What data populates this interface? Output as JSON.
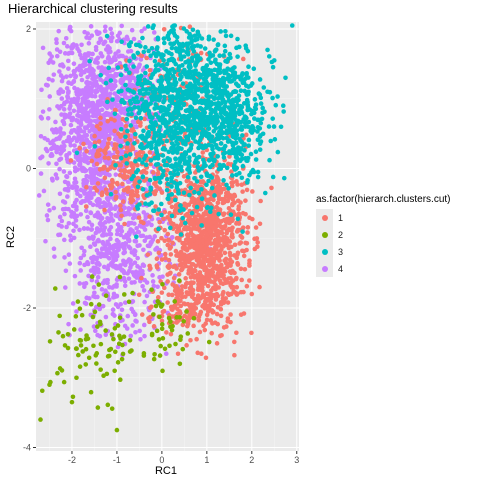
{
  "chart_data": {
    "type": "scatter",
    "title": "Hierarchical clustering results",
    "xlabel": "RC1",
    "ylabel": "RC2",
    "xlim": [
      -2.8,
      3.05
    ],
    "ylim": [
      -4.05,
      2.1
    ],
    "x_ticks": [
      -2,
      -1,
      0,
      1,
      2,
      3
    ],
    "x_tick_labels": [
      "-2",
      "-1",
      "0",
      "1",
      "2",
      "3"
    ],
    "y_ticks": [
      -4,
      -2,
      0,
      2
    ],
    "y_tick_labels": [
      "-4",
      "-2",
      "0",
      "2"
    ],
    "grid": true,
    "legend": {
      "title": "as.factor(hierarch.clusters.cut)",
      "position": "right"
    },
    "series": [
      {
        "name": "1",
        "color": "#F8766D",
        "clusters": [
          {
            "cx": 0.95,
            "cy": -1.0,
            "sx": 0.45,
            "sy": 0.6,
            "n": 1100
          },
          {
            "cx": -0.7,
            "cy": 0.05,
            "sx": 0.45,
            "sy": 0.35,
            "n": 250
          },
          {
            "cx": 0.2,
            "cy": 1.0,
            "sx": 0.6,
            "sy": 0.5,
            "n": 120
          },
          {
            "cx": 0.4,
            "cy": -2.05,
            "sx": 0.35,
            "sy": 0.15,
            "n": 80
          }
        ],
        "points": [
          [
            0.1,
            -2.35
          ],
          [
            2.0,
            -1.8
          ],
          [
            1.9,
            -0.2
          ],
          [
            -0.3,
            -2.15
          ],
          [
            1.3,
            -2.4
          ]
        ]
      },
      {
        "name": "2",
        "color": "#7CAE00",
        "clusters": [
          {
            "cx": -1.4,
            "cy": -2.5,
            "sx": 0.6,
            "sy": 0.4,
            "n": 90
          },
          {
            "cx": 0.1,
            "cy": -2.3,
            "sx": 0.35,
            "sy": 0.25,
            "n": 35
          }
        ],
        "points": [
          [
            -2.7,
            -3.6
          ],
          [
            -2.0,
            -3.35
          ],
          [
            -1.0,
            -3.75
          ],
          [
            -2.5,
            -3.1
          ],
          [
            -1.9,
            -3.0
          ],
          [
            -1.05,
            -2.9
          ],
          [
            0.4,
            -2.8
          ],
          [
            -0.4,
            -2.65
          ],
          [
            -2.3,
            -2.35
          ],
          [
            -1.55,
            -1.55
          ],
          [
            0.55,
            -2.05
          ]
        ]
      },
      {
        "name": "3",
        "color": "#00BFC4",
        "clusters": [
          {
            "cx": 0.6,
            "cy": 1.05,
            "sx": 0.75,
            "sy": 0.55,
            "n": 1000
          },
          {
            "cx": 1.55,
            "cy": 0.5,
            "sx": 0.4,
            "sy": 0.45,
            "n": 250
          },
          {
            "cx": 0.1,
            "cy": 0.2,
            "sx": 0.45,
            "sy": 0.5,
            "n": 200
          }
        ],
        "points": [
          [
            2.9,
            2.05
          ],
          [
            2.75,
            1.3
          ],
          [
            2.5,
            1.55
          ],
          [
            2.35,
            1.7
          ],
          [
            2.7,
            0.9
          ],
          [
            2.2,
            0.65
          ],
          [
            1.9,
            -0.2
          ],
          [
            2.05,
            -0.05
          ],
          [
            1.7,
            0.3
          ],
          [
            2.35,
            1.1
          ]
        ]
      },
      {
        "name": "4",
        "color": "#C77CFF",
        "clusters": [
          {
            "cx": -1.5,
            "cy": 0.55,
            "sx": 0.55,
            "sy": 0.75,
            "n": 1100
          },
          {
            "cx": -0.9,
            "cy": -1.2,
            "sx": 0.55,
            "sy": 0.6,
            "n": 500
          },
          {
            "cx": -0.9,
            "cy": 1.1,
            "sx": 0.5,
            "sy": 0.35,
            "n": 200
          }
        ],
        "points": [
          [
            -2.4,
            -1.15
          ],
          [
            -2.55,
            0.25
          ],
          [
            -2.5,
            -0.6
          ],
          [
            -1.9,
            -2.05
          ],
          [
            -0.65,
            -2.25
          ],
          [
            -2.2,
            1.1
          ]
        ]
      }
    ]
  }
}
